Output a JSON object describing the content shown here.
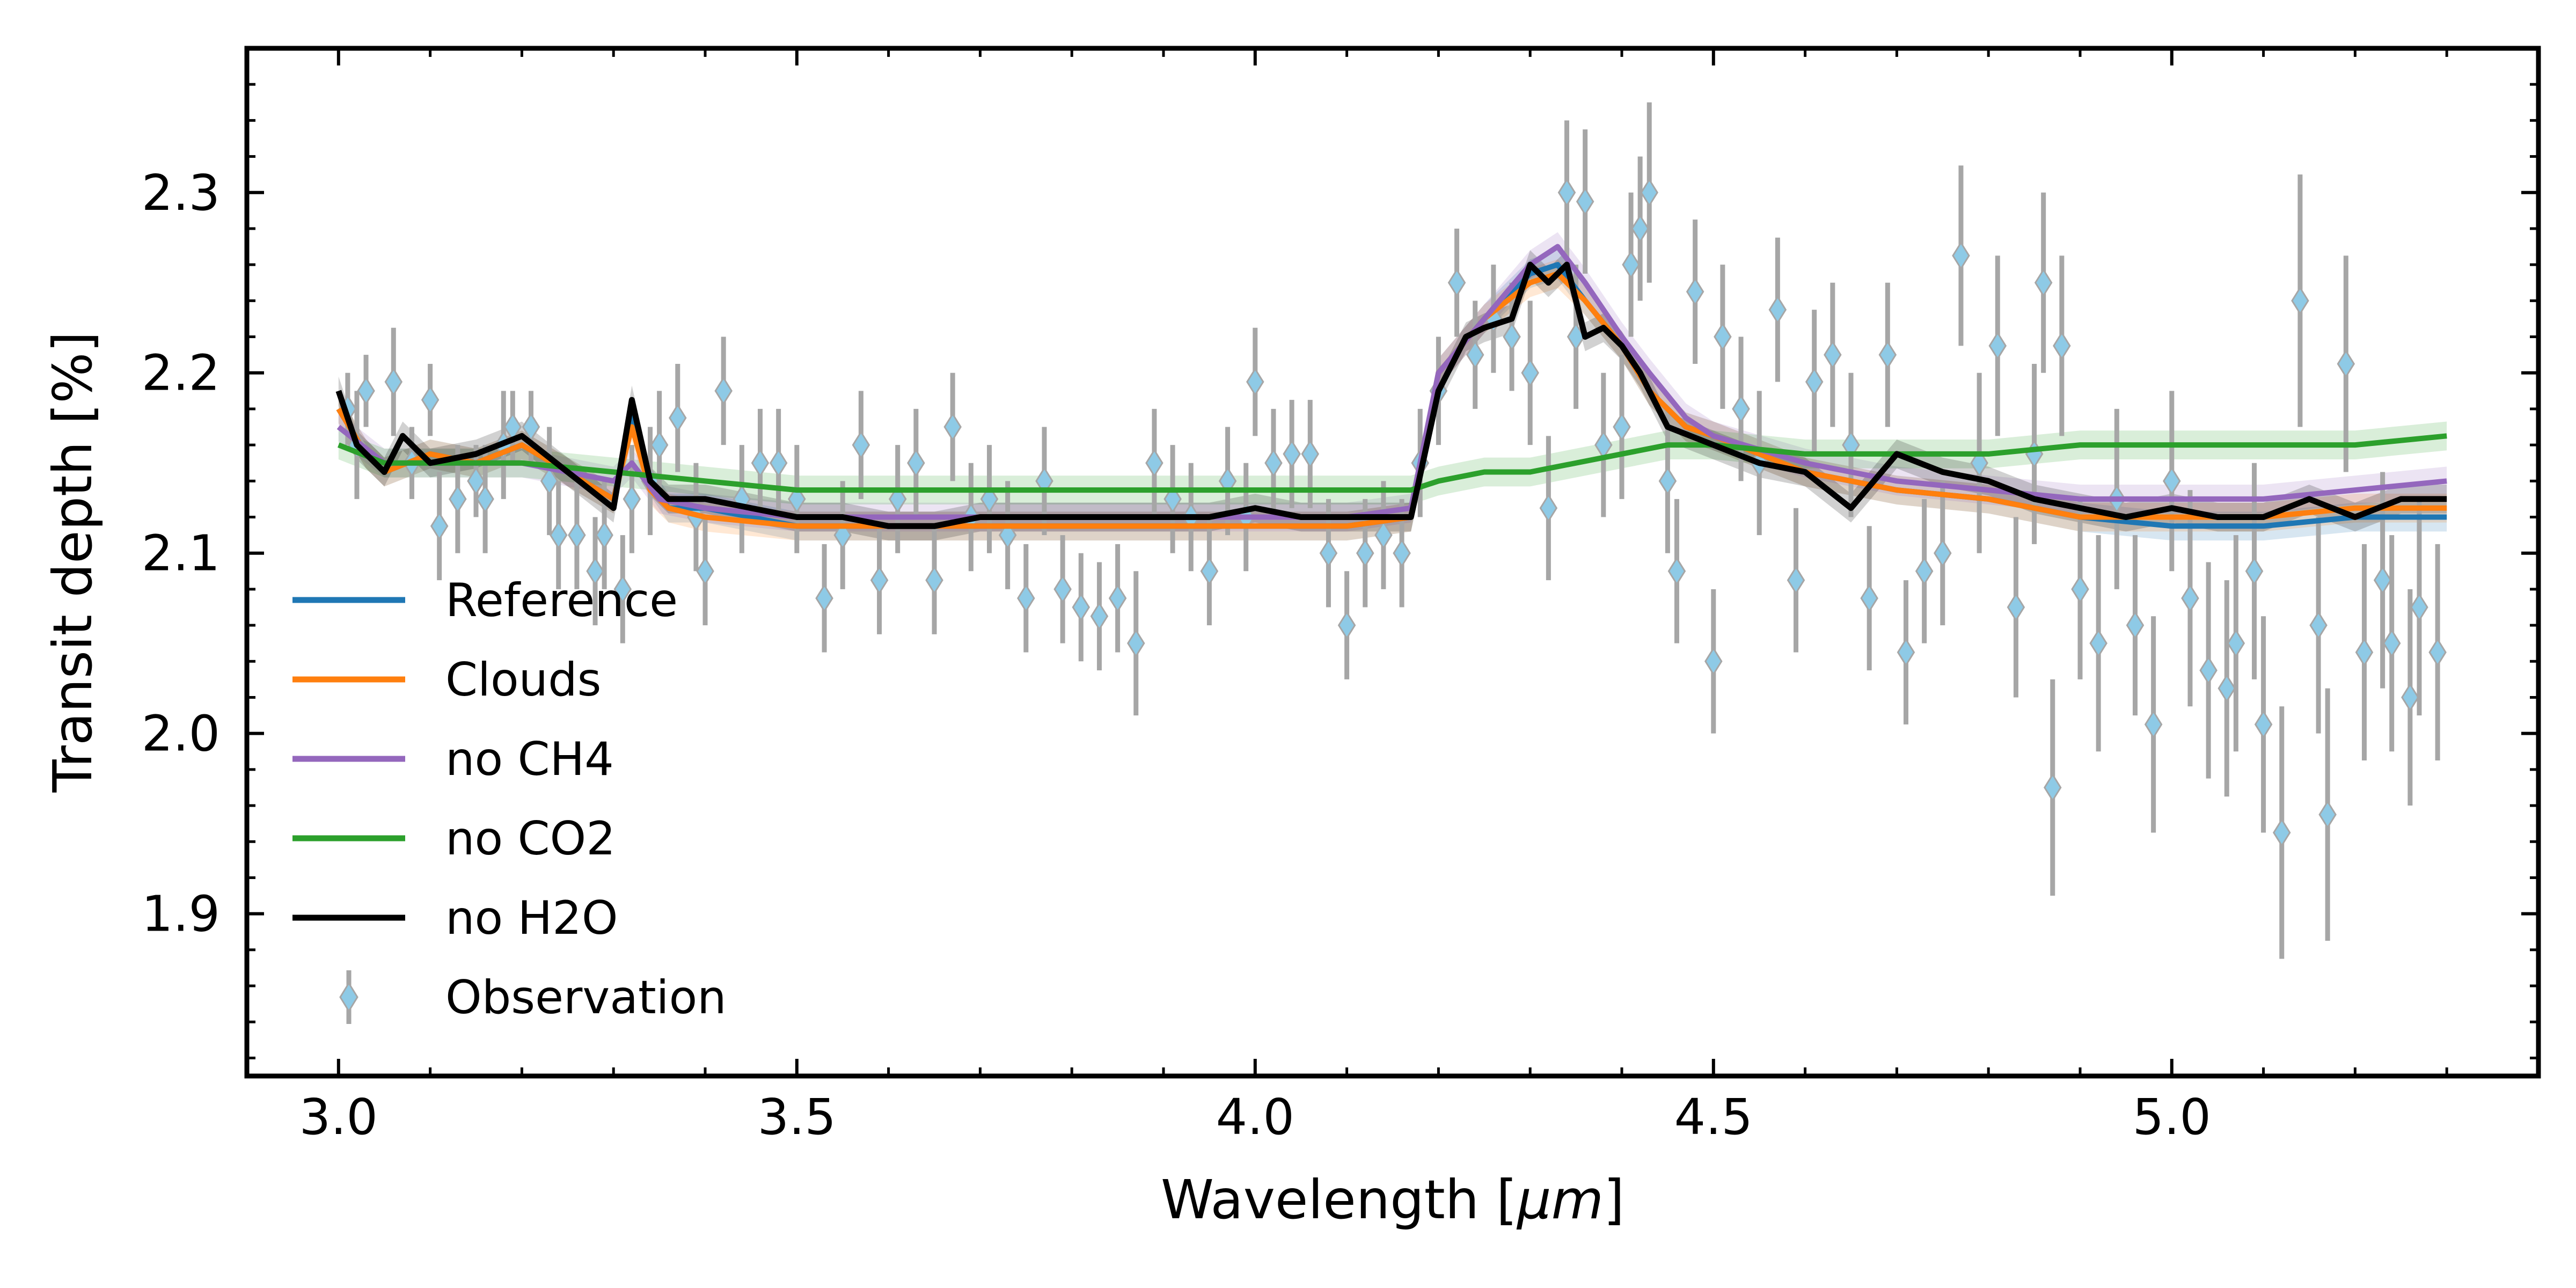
{
  "chart_data": {
    "type": "line",
    "title": "",
    "xlabel_main": "Wavelength [",
    "xlabel_unit": "μm",
    "xlabel_close": "]",
    "ylabel": "Transit depth [%]",
    "xlim": [
      2.9,
      5.4
    ],
    "ylim": [
      1.81,
      2.38
    ],
    "xticks": [
      3.0,
      3.5,
      4.0,
      4.5,
      5.0
    ],
    "xtick_labels": [
      "3.0",
      "3.5",
      "4.0",
      "4.5",
      "5.0"
    ],
    "yticks": [
      1.9,
      2.0,
      2.1,
      2.2,
      2.3
    ],
    "ytick_labels": [
      "1.9",
      "2.0",
      "2.1",
      "2.2",
      "2.3"
    ],
    "grid": false,
    "legend_position": "lower-left",
    "series": [
      {
        "name": "Reference",
        "color": "#1f77b4",
        "x": [
          3.0,
          3.03,
          3.05,
          3.1,
          3.15,
          3.2,
          3.25,
          3.3,
          3.32,
          3.34,
          3.36,
          3.4,
          3.5,
          3.6,
          3.7,
          3.8,
          3.9,
          4.0,
          4.1,
          4.17,
          4.2,
          4.25,
          4.3,
          4.33,
          4.36,
          4.4,
          4.43,
          4.47,
          4.5,
          4.6,
          4.7,
          4.8,
          4.9,
          5.0,
          5.1,
          5.2,
          5.3
        ],
        "y": [
          2.18,
          2.155,
          2.145,
          2.155,
          2.15,
          2.16,
          2.145,
          2.13,
          2.175,
          2.14,
          2.125,
          2.125,
          2.115,
          2.115,
          2.115,
          2.115,
          2.115,
          2.115,
          2.115,
          2.12,
          2.2,
          2.23,
          2.255,
          2.26,
          2.24,
          2.215,
          2.19,
          2.17,
          2.165,
          2.145,
          2.135,
          2.13,
          2.12,
          2.115,
          2.115,
          2.12,
          2.12
        ]
      },
      {
        "name": "Clouds",
        "color": "#ff7f0e",
        "x": [
          3.0,
          3.03,
          3.05,
          3.1,
          3.15,
          3.2,
          3.25,
          3.3,
          3.32,
          3.34,
          3.36,
          3.4,
          3.5,
          3.6,
          3.7,
          3.8,
          3.9,
          4.0,
          4.1,
          4.17,
          4.2,
          4.25,
          4.3,
          4.33,
          4.36,
          4.4,
          4.43,
          4.47,
          4.5,
          4.6,
          4.7,
          4.8,
          4.9,
          5.0,
          5.1,
          5.2,
          5.3
        ],
        "y": [
          2.18,
          2.155,
          2.145,
          2.155,
          2.15,
          2.16,
          2.145,
          2.13,
          2.17,
          2.135,
          2.125,
          2.12,
          2.115,
          2.115,
          2.115,
          2.115,
          2.115,
          2.115,
          2.115,
          2.12,
          2.2,
          2.23,
          2.25,
          2.255,
          2.24,
          2.215,
          2.19,
          2.17,
          2.165,
          2.145,
          2.135,
          2.13,
          2.12,
          2.12,
          2.12,
          2.125,
          2.125
        ]
      },
      {
        "name": "no CH4",
        "color": "#9467bd",
        "x": [
          3.0,
          3.05,
          3.1,
          3.2,
          3.3,
          3.32,
          3.35,
          3.4,
          3.5,
          3.6,
          3.7,
          3.8,
          3.9,
          4.0,
          4.1,
          4.17,
          4.2,
          4.25,
          4.3,
          4.33,
          4.36,
          4.4,
          4.43,
          4.47,
          4.5,
          4.6,
          4.7,
          4.8,
          4.9,
          5.0,
          5.1,
          5.2,
          5.3
        ],
        "y": [
          2.17,
          2.15,
          2.15,
          2.15,
          2.14,
          2.15,
          2.13,
          2.125,
          2.12,
          2.12,
          2.12,
          2.12,
          2.12,
          2.12,
          2.12,
          2.125,
          2.2,
          2.23,
          2.26,
          2.27,
          2.25,
          2.22,
          2.2,
          2.175,
          2.165,
          2.15,
          2.14,
          2.135,
          2.13,
          2.13,
          2.13,
          2.135,
          2.14
        ]
      },
      {
        "name": "no CO2",
        "color": "#2ca02c",
        "x": [
          3.0,
          3.05,
          3.1,
          3.2,
          3.3,
          3.4,
          3.5,
          3.6,
          3.7,
          3.8,
          3.9,
          4.0,
          4.1,
          4.17,
          4.2,
          4.25,
          4.3,
          4.35,
          4.4,
          4.45,
          4.5,
          4.6,
          4.7,
          4.8,
          4.9,
          5.0,
          5.1,
          5.2,
          5.3
        ],
        "y": [
          2.16,
          2.15,
          2.15,
          2.15,
          2.145,
          2.14,
          2.135,
          2.135,
          2.135,
          2.135,
          2.135,
          2.135,
          2.135,
          2.135,
          2.14,
          2.145,
          2.145,
          2.15,
          2.155,
          2.16,
          2.16,
          2.155,
          2.155,
          2.155,
          2.16,
          2.16,
          2.16,
          2.16,
          2.165
        ]
      },
      {
        "name": "no H2O",
        "color": "#000000",
        "x": [
          3.0,
          3.02,
          3.05,
          3.07,
          3.1,
          3.15,
          3.2,
          3.25,
          3.3,
          3.32,
          3.34,
          3.36,
          3.4,
          3.45,
          3.5,
          3.55,
          3.6,
          3.65,
          3.7,
          3.75,
          3.8,
          3.85,
          3.9,
          3.95,
          4.0,
          4.05,
          4.1,
          4.15,
          4.17,
          4.2,
          4.23,
          4.25,
          4.28,
          4.3,
          4.32,
          4.34,
          4.36,
          4.38,
          4.4,
          4.42,
          4.45,
          4.5,
          4.55,
          4.6,
          4.65,
          4.7,
          4.75,
          4.8,
          4.85,
          4.9,
          4.95,
          5.0,
          5.05,
          5.1,
          5.15,
          5.2,
          5.25,
          5.3
        ],
        "y": [
          2.19,
          2.16,
          2.145,
          2.165,
          2.15,
          2.155,
          2.165,
          2.145,
          2.125,
          2.185,
          2.14,
          2.13,
          2.13,
          2.125,
          2.12,
          2.12,
          2.115,
          2.115,
          2.12,
          2.12,
          2.12,
          2.12,
          2.12,
          2.12,
          2.125,
          2.12,
          2.12,
          2.12,
          2.12,
          2.19,
          2.22,
          2.225,
          2.23,
          2.26,
          2.25,
          2.26,
          2.22,
          2.225,
          2.215,
          2.2,
          2.17,
          2.16,
          2.15,
          2.145,
          2.125,
          2.155,
          2.145,
          2.14,
          2.13,
          2.125,
          2.12,
          2.125,
          2.12,
          2.12,
          2.13,
          2.12,
          2.13,
          2.13
        ]
      }
    ],
    "observation": {
      "name": "Observation",
      "marker_color": "#8ecae6",
      "errorbar_color": "#a6a6a6",
      "points": [
        [
          3.01,
          2.18,
          0.02
        ],
        [
          3.02,
          2.16,
          0.03
        ],
        [
          3.03,
          2.19,
          0.02
        ],
        [
          3.06,
          2.195,
          0.03
        ],
        [
          3.08,
          2.15,
          0.02
        ],
        [
          3.1,
          2.185,
          0.02
        ],
        [
          3.11,
          2.115,
          0.03
        ],
        [
          3.13,
          2.13,
          0.03
        ],
        [
          3.15,
          2.14,
          0.02
        ],
        [
          3.16,
          2.13,
          0.03
        ],
        [
          3.18,
          2.16,
          0.03
        ],
        [
          3.19,
          2.17,
          0.02
        ],
        [
          3.21,
          2.17,
          0.02
        ],
        [
          3.23,
          2.14,
          0.03
        ],
        [
          3.24,
          2.11,
          0.03
        ],
        [
          3.26,
          2.11,
          0.03
        ],
        [
          3.28,
          2.09,
          0.03
        ],
        [
          3.29,
          2.11,
          0.03
        ],
        [
          3.31,
          2.08,
          0.03
        ],
        [
          3.32,
          2.13,
          0.03
        ],
        [
          3.34,
          2.14,
          0.03
        ],
        [
          3.35,
          2.16,
          0.03
        ],
        [
          3.37,
          2.175,
          0.03
        ],
        [
          3.39,
          2.12,
          0.03
        ],
        [
          3.4,
          2.09,
          0.03
        ],
        [
          3.42,
          2.19,
          0.03
        ],
        [
          3.44,
          2.13,
          0.03
        ],
        [
          3.46,
          2.15,
          0.03
        ],
        [
          3.48,
          2.15,
          0.03
        ],
        [
          3.5,
          2.13,
          0.03
        ],
        [
          3.53,
          2.075,
          0.03
        ],
        [
          3.55,
          2.11,
          0.03
        ],
        [
          3.57,
          2.16,
          0.03
        ],
        [
          3.59,
          2.085,
          0.03
        ],
        [
          3.61,
          2.13,
          0.03
        ],
        [
          3.63,
          2.15,
          0.03
        ],
        [
          3.65,
          2.085,
          0.03
        ],
        [
          3.67,
          2.17,
          0.03
        ],
        [
          3.69,
          2.12,
          0.03
        ],
        [
          3.71,
          2.13,
          0.03
        ],
        [
          3.73,
          2.11,
          0.03
        ],
        [
          3.75,
          2.075,
          0.03
        ],
        [
          3.77,
          2.14,
          0.03
        ],
        [
          3.79,
          2.08,
          0.03
        ],
        [
          3.81,
          2.07,
          0.03
        ],
        [
          3.83,
          2.065,
          0.03
        ],
        [
          3.85,
          2.075,
          0.03
        ],
        [
          3.87,
          2.05,
          0.04
        ],
        [
          3.89,
          2.15,
          0.03
        ],
        [
          3.91,
          2.13,
          0.03
        ],
        [
          3.93,
          2.12,
          0.03
        ],
        [
          3.95,
          2.09,
          0.03
        ],
        [
          3.97,
          2.14,
          0.03
        ],
        [
          3.99,
          2.12,
          0.03
        ],
        [
          4.0,
          2.195,
          0.03
        ],
        [
          4.02,
          2.15,
          0.03
        ],
        [
          4.04,
          2.155,
          0.03
        ],
        [
          4.06,
          2.155,
          0.03
        ],
        [
          4.08,
          2.1,
          0.03
        ],
        [
          4.1,
          2.06,
          0.03
        ],
        [
          4.12,
          2.1,
          0.03
        ],
        [
          4.14,
          2.11,
          0.03
        ],
        [
          4.16,
          2.1,
          0.03
        ],
        [
          4.18,
          2.15,
          0.03
        ],
        [
          4.2,
          2.19,
          0.03
        ],
        [
          4.22,
          2.25,
          0.03
        ],
        [
          4.24,
          2.21,
          0.03
        ],
        [
          4.26,
          2.23,
          0.03
        ],
        [
          4.28,
          2.22,
          0.03
        ],
        [
          4.3,
          2.2,
          0.04
        ],
        [
          4.32,
          2.125,
          0.04
        ],
        [
          4.34,
          2.3,
          0.04
        ],
        [
          4.35,
          2.22,
          0.04
        ],
        [
          4.36,
          2.295,
          0.04
        ],
        [
          4.38,
          2.16,
          0.04
        ],
        [
          4.4,
          2.17,
          0.04
        ],
        [
          4.41,
          2.26,
          0.04
        ],
        [
          4.42,
          2.28,
          0.04
        ],
        [
          4.43,
          2.3,
          0.05
        ],
        [
          4.45,
          2.14,
          0.04
        ],
        [
          4.46,
          2.09,
          0.04
        ],
        [
          4.48,
          2.245,
          0.04
        ],
        [
          4.5,
          2.04,
          0.04
        ],
        [
          4.51,
          2.22,
          0.04
        ],
        [
          4.53,
          2.18,
          0.04
        ],
        [
          4.55,
          2.15,
          0.04
        ],
        [
          4.57,
          2.235,
          0.04
        ],
        [
          4.59,
          2.085,
          0.04
        ],
        [
          4.61,
          2.195,
          0.04
        ],
        [
          4.63,
          2.21,
          0.04
        ],
        [
          4.65,
          2.16,
          0.04
        ],
        [
          4.67,
          2.075,
          0.04
        ],
        [
          4.69,
          2.21,
          0.04
        ],
        [
          4.71,
          2.045,
          0.04
        ],
        [
          4.73,
          2.09,
          0.04
        ],
        [
          4.75,
          2.1,
          0.04
        ],
        [
          4.77,
          2.265,
          0.05
        ],
        [
          4.79,
          2.15,
          0.05
        ],
        [
          4.81,
          2.215,
          0.05
        ],
        [
          4.83,
          2.07,
          0.05
        ],
        [
          4.85,
          2.155,
          0.05
        ],
        [
          4.86,
          2.25,
          0.05
        ],
        [
          4.87,
          1.97,
          0.06
        ],
        [
          4.88,
          2.215,
          0.05
        ],
        [
          4.9,
          2.08,
          0.05
        ],
        [
          4.92,
          2.05,
          0.06
        ],
        [
          4.94,
          2.13,
          0.05
        ],
        [
          4.96,
          2.06,
          0.05
        ],
        [
          4.98,
          2.005,
          0.06
        ],
        [
          5.0,
          2.14,
          0.05
        ],
        [
          5.02,
          2.075,
          0.06
        ],
        [
          5.04,
          2.035,
          0.06
        ],
        [
          5.06,
          2.025,
          0.06
        ],
        [
          5.07,
          2.05,
          0.06
        ],
        [
          5.09,
          2.09,
          0.06
        ],
        [
          5.1,
          2.005,
          0.06
        ],
        [
          5.12,
          1.945,
          0.07
        ],
        [
          5.14,
          2.24,
          0.07
        ],
        [
          5.16,
          2.06,
          0.06
        ],
        [
          5.17,
          1.955,
          0.07
        ],
        [
          5.19,
          2.205,
          0.06
        ],
        [
          5.21,
          2.045,
          0.06
        ],
        [
          5.23,
          2.085,
          0.06
        ],
        [
          5.24,
          2.05,
          0.06
        ],
        [
          5.26,
          2.02,
          0.06
        ],
        [
          5.27,
          2.07,
          0.06
        ],
        [
          5.29,
          2.045,
          0.06
        ]
      ]
    }
  }
}
